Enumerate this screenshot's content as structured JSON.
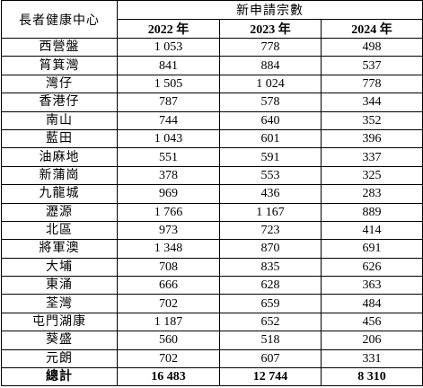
{
  "table": {
    "header": {
      "corner": "長者健康中心",
      "group": "新申請宗數",
      "years": [
        "2022 年",
        "2023 年",
        "2024 年"
      ]
    },
    "rows": [
      [
        "西營盤",
        "1 053",
        "778",
        "498"
      ],
      [
        "筲箕灣",
        "841",
        "884",
        "537"
      ],
      [
        "灣仔",
        "1 505",
        "1 024",
        "778"
      ],
      [
        "香港仔",
        "787",
        "578",
        "344"
      ],
      [
        "南山",
        "744",
        "640",
        "352"
      ],
      [
        "藍田",
        "1 043",
        "601",
        "396"
      ],
      [
        "油麻地",
        "551",
        "591",
        "337"
      ],
      [
        "新蒲崗",
        "378",
        "553",
        "325"
      ],
      [
        "九龍城",
        "969",
        "436",
        "283"
      ],
      [
        "瀝源",
        "1 766",
        "1 167",
        "889"
      ],
      [
        "北區",
        "973",
        "723",
        "414"
      ],
      [
        "將軍澳",
        "1 348",
        "870",
        "691"
      ],
      [
        "大埔",
        "708",
        "835",
        "626"
      ],
      [
        "東涌",
        "666",
        "628",
        "363"
      ],
      [
        "荃灣",
        "702",
        "659",
        "484"
      ],
      [
        "屯門湖康",
        "1 187",
        "652",
        "456"
      ],
      [
        "葵盛",
        "560",
        "518",
        "206"
      ],
      [
        "元朗",
        "702",
        "607",
        "331"
      ]
    ],
    "total": [
      "總計",
      "16 483",
      "12 744",
      "8 310"
    ]
  }
}
